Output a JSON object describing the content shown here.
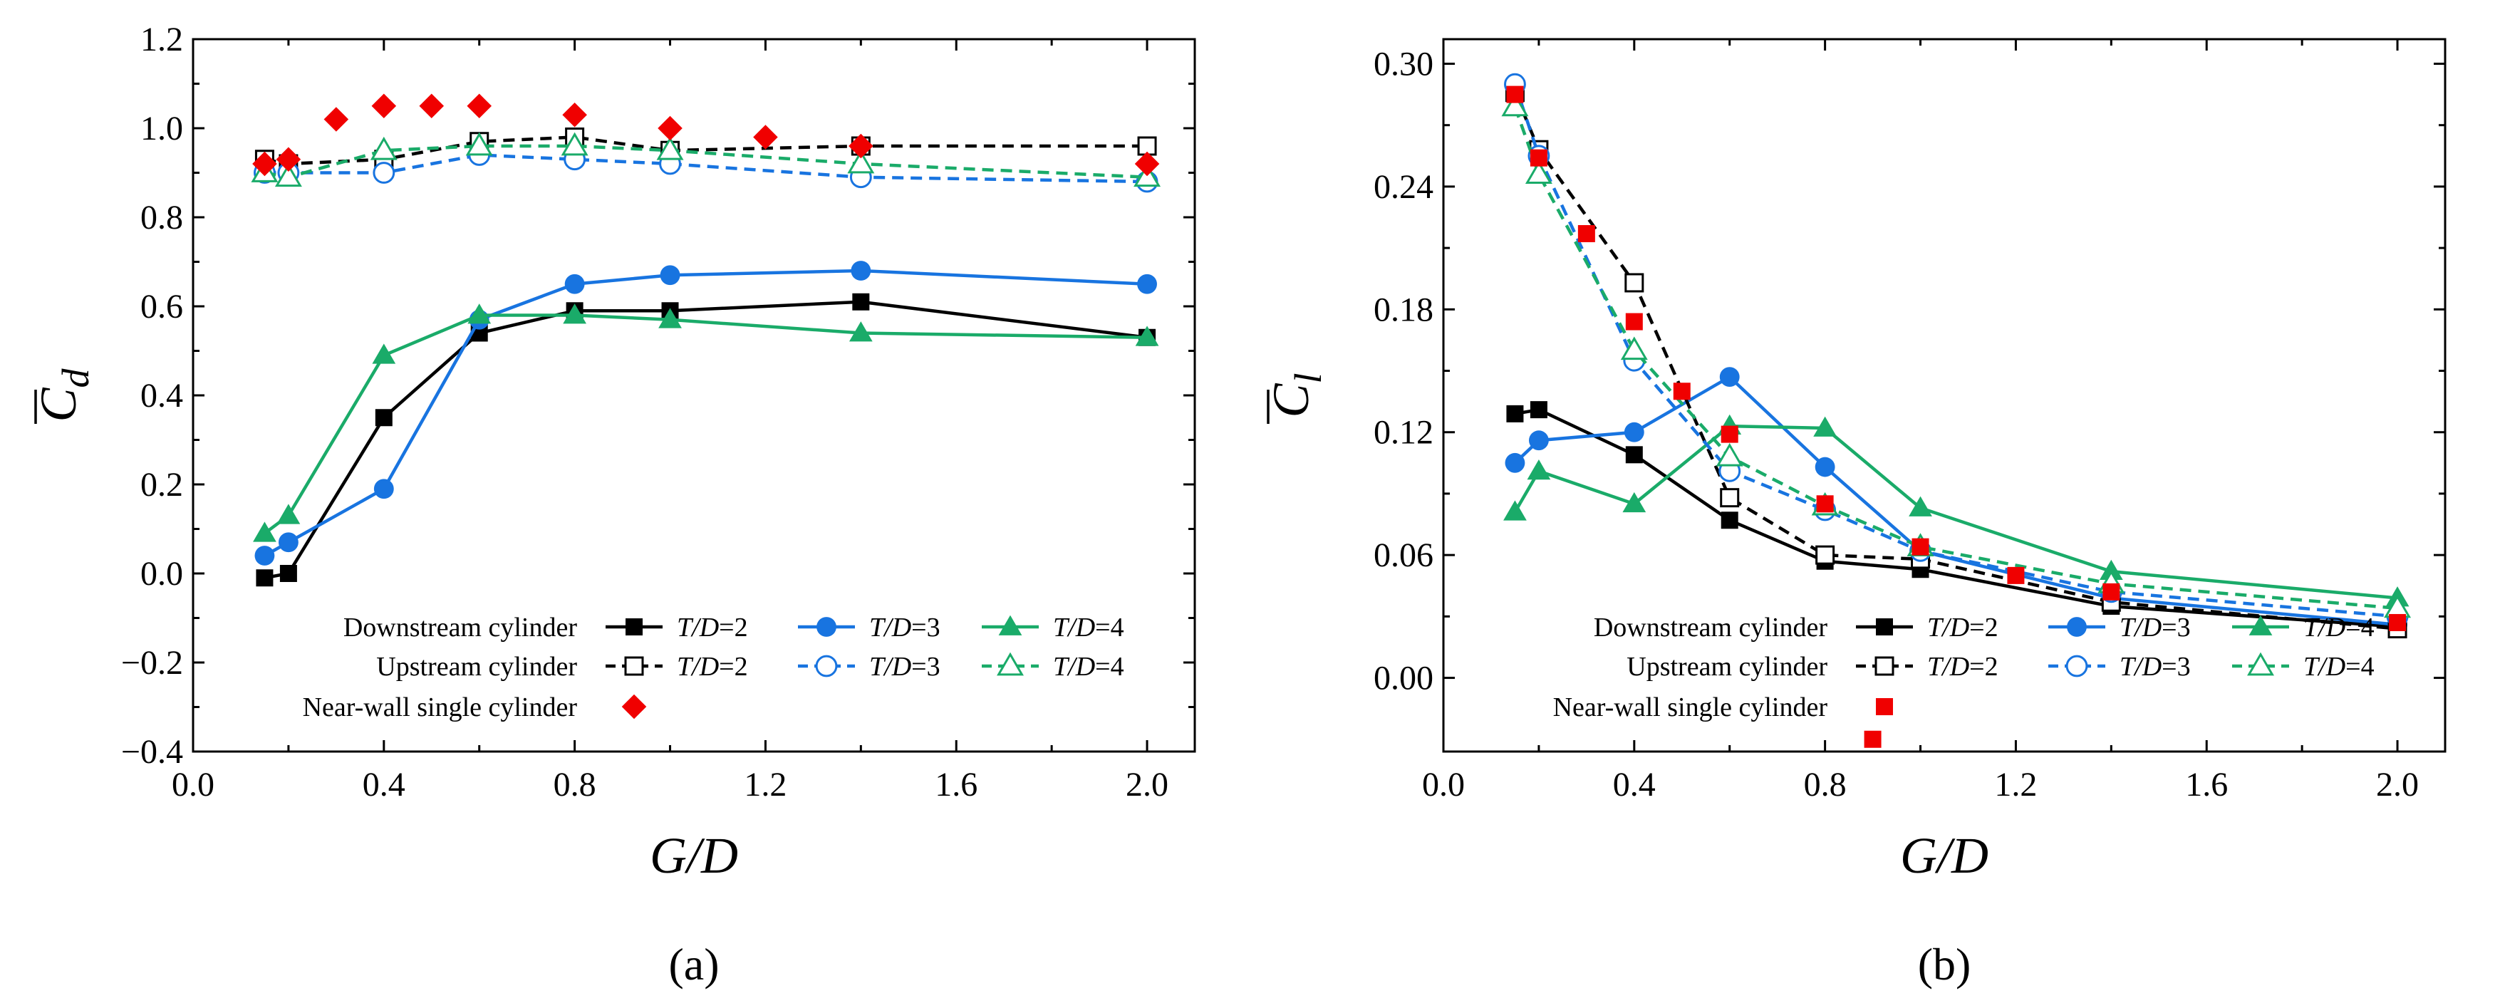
{
  "colors": {
    "black": "#000000",
    "blue": "#1874e0",
    "green": "#1aab69",
    "red": "#f00000"
  },
  "chart_data": [
    {
      "type": "line",
      "panel_label": "(a)",
      "xlabel": "G/D",
      "ylabel": "C̄d",
      "ylabel_main": "C",
      "ylabel_sub": "d",
      "xlim": [
        0.0,
        2.1
      ],
      "ylim": [
        -0.4,
        1.2
      ],
      "xticks": [
        0.0,
        0.4,
        0.8,
        1.2,
        1.6,
        2.0
      ],
      "yticks": [
        -0.4,
        -0.2,
        0.0,
        0.2,
        0.4,
        0.6,
        0.8,
        1.0,
        1.2
      ],
      "xtick_labels": [
        "0.0",
        "0.4",
        "0.8",
        "1.2",
        "1.6",
        "2.0"
      ],
      "ytick_labels": [
        "−0.4",
        "−0.2",
        "0.0",
        "0.2",
        "0.4",
        "0.6",
        "0.8",
        "1.0",
        "1.2"
      ],
      "legend_row_labels": [
        "Downstream cylinder",
        "Upstream cylinder",
        "Near-wall single cylinder"
      ],
      "legend_position": "lower-center",
      "series": [
        {
          "name": "Downstream cylinder T/D=2",
          "group": "Downstream cylinder",
          "label_var": "T/D",
          "label_val": "=2",
          "color": "#000000",
          "marker": "square",
          "filled": true,
          "dash": "solid",
          "x": [
            0.15,
            0.2,
            0.4,
            0.6,
            0.8,
            1.0,
            1.4,
            2.0
          ],
          "y": [
            -0.01,
            0.0,
            0.35,
            0.54,
            0.59,
            0.59,
            0.61,
            0.53
          ]
        },
        {
          "name": "Downstream cylinder T/D=3",
          "group": "Downstream cylinder",
          "label_var": "T/D",
          "label_val": "=3",
          "color": "#1874e0",
          "marker": "circle",
          "filled": true,
          "dash": "solid",
          "x": [
            0.15,
            0.2,
            0.4,
            0.6,
            0.8,
            1.0,
            1.4,
            2.0
          ],
          "y": [
            0.04,
            0.07,
            0.19,
            0.57,
            0.65,
            0.67,
            0.68,
            0.65
          ]
        },
        {
          "name": "Downstream cylinder T/D=4",
          "group": "Downstream cylinder",
          "label_var": "T/D",
          "label_val": "=4",
          "color": "#1aab69",
          "marker": "triangle",
          "filled": true,
          "dash": "solid",
          "x": [
            0.15,
            0.2,
            0.4,
            0.6,
            0.8,
            1.0,
            1.4,
            2.0
          ],
          "y": [
            0.09,
            0.13,
            0.49,
            0.58,
            0.58,
            0.57,
            0.54,
            0.53
          ]
        },
        {
          "name": "Upstream cylinder T/D=2",
          "group": "Upstream cylinder",
          "label_var": "T/D",
          "label_val": "=2",
          "color": "#000000",
          "marker": "square",
          "filled": false,
          "dash": "dashed",
          "x": [
            0.15,
            0.2,
            0.4,
            0.6,
            0.8,
            1.0,
            1.4,
            2.0
          ],
          "y": [
            0.93,
            0.92,
            0.93,
            0.97,
            0.98,
            0.95,
            0.96,
            0.96
          ]
        },
        {
          "name": "Upstream cylinder T/D=3",
          "group": "Upstream cylinder",
          "label_var": "T/D",
          "label_val": "=3",
          "color": "#1874e0",
          "marker": "circle",
          "filled": false,
          "dash": "dashed",
          "x": [
            0.15,
            0.2,
            0.4,
            0.6,
            0.8,
            1.0,
            1.4,
            2.0
          ],
          "y": [
            0.9,
            0.9,
            0.9,
            0.94,
            0.93,
            0.92,
            0.89,
            0.88
          ]
        },
        {
          "name": "Upstream cylinder T/D=4",
          "group": "Upstream cylinder",
          "label_var": "T/D",
          "label_val": "=4",
          "color": "#1aab69",
          "marker": "triangle",
          "filled": false,
          "dash": "dashed",
          "x": [
            0.15,
            0.2,
            0.4,
            0.6,
            0.8,
            1.0,
            1.4,
            2.0
          ],
          "y": [
            0.9,
            0.89,
            0.95,
            0.96,
            0.96,
            0.95,
            0.92,
            0.89
          ]
        },
        {
          "name": "Near-wall single cylinder",
          "group": "Near-wall single cylinder",
          "label_var": "",
          "label_val": "",
          "color": "#f00000",
          "marker": "diamond",
          "filled": true,
          "dash": "none",
          "x": [
            0.15,
            0.2,
            0.3,
            0.4,
            0.5,
            0.6,
            0.8,
            1.0,
            1.2,
            1.4,
            2.0
          ],
          "y": [
            0.92,
            0.93,
            1.02,
            1.05,
            1.05,
            1.05,
            1.03,
            1.0,
            0.98,
            0.96,
            0.92
          ]
        }
      ]
    },
    {
      "type": "line",
      "panel_label": "(b)",
      "xlabel": "G/D",
      "ylabel": "C̄l",
      "ylabel_main": "C",
      "ylabel_sub": "l",
      "xlim": [
        0.0,
        2.1
      ],
      "ylim": [
        -0.036,
        0.312
      ],
      "xticks": [
        0.0,
        0.4,
        0.8,
        1.2,
        1.6,
        2.0
      ],
      "yticks": [
        0.0,
        0.06,
        0.12,
        0.18,
        0.24,
        0.3
      ],
      "xtick_labels": [
        "0.0",
        "0.4",
        "0.8",
        "1.2",
        "1.6",
        "2.0"
      ],
      "ytick_labels": [
        "0.00",
        "0.06",
        "0.12",
        "0.18",
        "0.24",
        "0.30"
      ],
      "legend_row_labels": [
        "Downstream cylinder",
        "Upstream cylinder",
        "Near-wall single cylinder"
      ],
      "legend_position": "lower-center",
      "series": [
        {
          "name": "Downstream cylinder T/D=2",
          "group": "Downstream cylinder",
          "label_var": "T/D",
          "label_val": "=2",
          "color": "#000000",
          "marker": "square",
          "filled": true,
          "dash": "solid",
          "x": [
            0.15,
            0.2,
            0.4,
            0.6,
            0.8,
            1.0,
            1.4,
            2.0
          ],
          "y": [
            0.129,
            0.131,
            0.109,
            0.077,
            0.057,
            0.053,
            0.035,
            0.025
          ]
        },
        {
          "name": "Downstream cylinder T/D=3",
          "group": "Downstream cylinder",
          "label_var": "T/D",
          "label_val": "=3",
          "color": "#1874e0",
          "marker": "circle",
          "filled": true,
          "dash": "solid",
          "x": [
            0.15,
            0.2,
            0.4,
            0.6,
            0.8,
            1.0,
            1.4,
            2.0
          ],
          "y": [
            0.105,
            0.116,
            0.12,
            0.147,
            0.103,
            0.062,
            0.039,
            0.026
          ]
        },
        {
          "name": "Downstream cylinder T/D=4",
          "group": "Downstream cylinder",
          "label_var": "T/D",
          "label_val": "=4",
          "color": "#1aab69",
          "marker": "triangle",
          "filled": true,
          "dash": "solid",
          "x": [
            0.15,
            0.2,
            0.4,
            0.6,
            0.8,
            1.0,
            1.4,
            2.0
          ],
          "y": [
            0.081,
            0.101,
            0.085,
            0.123,
            0.122,
            0.083,
            0.052,
            0.039
          ]
        },
        {
          "name": "Upstream cylinder T/D=2",
          "group": "Upstream cylinder",
          "label_var": "T/D",
          "label_val": "=2",
          "color": "#000000",
          "marker": "square",
          "filled": false,
          "dash": "dashed",
          "x": [
            0.15,
            0.2,
            0.4,
            0.6,
            0.8,
            1.0,
            1.4,
            2.0
          ],
          "y": [
            0.286,
            0.258,
            0.193,
            0.088,
            0.06,
            0.058,
            0.037,
            0.024
          ]
        },
        {
          "name": "Upstream cylinder T/D=3",
          "group": "Upstream cylinder",
          "label_var": "T/D",
          "label_val": "=3",
          "color": "#1874e0",
          "marker": "circle",
          "filled": false,
          "dash": "dashed",
          "x": [
            0.15,
            0.2,
            0.4,
            0.6,
            0.8,
            1.0,
            1.4,
            2.0
          ],
          "y": [
            0.29,
            0.255,
            0.155,
            0.101,
            0.082,
            0.062,
            0.042,
            0.03
          ]
        },
        {
          "name": "Upstream cylinder T/D=4",
          "group": "Upstream cylinder",
          "label_var": "T/D",
          "label_val": "=4",
          "color": "#1aab69",
          "marker": "triangle",
          "filled": false,
          "dash": "dashed",
          "x": [
            0.15,
            0.2,
            0.4,
            0.6,
            0.8,
            1.0,
            1.4,
            2.0
          ],
          "y": [
            0.279,
            0.246,
            0.16,
            0.108,
            0.084,
            0.064,
            0.046,
            0.034
          ]
        },
        {
          "name": "Near-wall single cylinder",
          "group": "Near-wall single cylinder",
          "label_var": "",
          "label_val": "",
          "color": "#f00000",
          "marker": "square",
          "filled": true,
          "dash": "none",
          "x": [
            0.15,
            0.2,
            0.3,
            0.4,
            0.5,
            0.6,
            0.8,
            0.9,
            1.0,
            1.2,
            1.4,
            2.0
          ],
          "y": [
            0.285,
            0.254,
            0.217,
            0.174,
            0.14,
            0.119,
            0.085,
            -0.03,
            0.064,
            0.05,
            0.042,
            0.027
          ]
        }
      ]
    }
  ]
}
